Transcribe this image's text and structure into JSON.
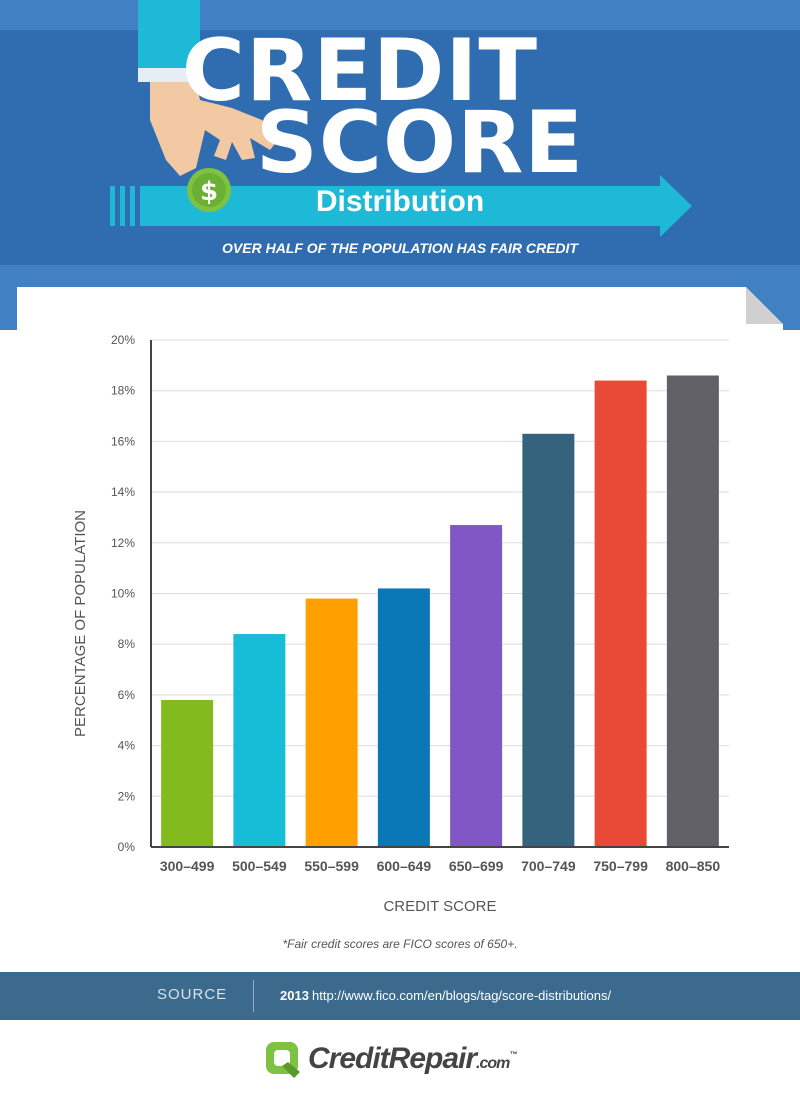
{
  "header": {
    "title_line1": "CREDIT",
    "title_line2": "SCORE",
    "subtitle": "Distribution",
    "tagline": "OVER HALF OF THE POPULATION HAS FAIR CREDIT"
  },
  "colors": {
    "header_bg": "#4180c2",
    "arrow": "#1fb9d8",
    "coin": "#7dc242",
    "source_bar": "#3b6a8c"
  },
  "chart_data": {
    "type": "bar",
    "title": "",
    "xlabel": "CREDIT SCORE",
    "ylabel": "PERCENTAGE OF POPULATION",
    "ylim": [
      0,
      20
    ],
    "y_ticks": [
      "0%",
      "2%",
      "4%",
      "6%",
      "8%",
      "10%",
      "12%",
      "14%",
      "16%",
      "18%",
      "20%"
    ],
    "grid": true,
    "categories": [
      "300–499",
      "500–549",
      "550–599",
      "600–649",
      "650–699",
      "700–749",
      "750–799",
      "800–850"
    ],
    "values": [
      5.8,
      8.4,
      9.8,
      10.2,
      12.7,
      16.3,
      18.4,
      18.6
    ],
    "bar_colors": [
      "#83bb1f",
      "#17bcd6",
      "#ffa000",
      "#0a78b6",
      "#8157c6",
      "#35637e",
      "#e84a37",
      "#636168"
    ]
  },
  "footnote": "*Fair credit scores are FICO scores of 650+.",
  "source": {
    "label": "SOURCE",
    "year": "2013",
    "url": "http://www.fico.com/en/blogs/tag/score-distributions/"
  },
  "logo": {
    "text": "CreditRepair",
    "suffix": ".com",
    "tm": "™"
  }
}
